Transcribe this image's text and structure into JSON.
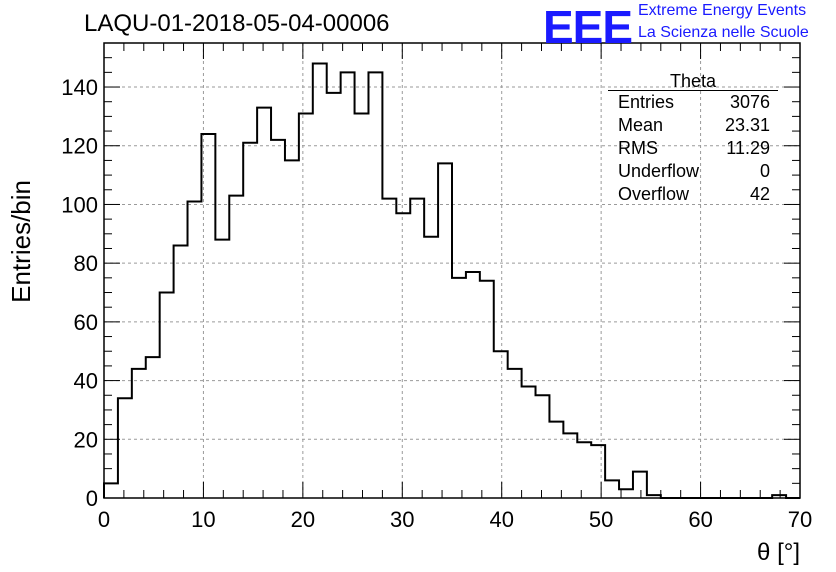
{
  "title": "LAQU-01-2018-05-04-00006",
  "logo": {
    "mark": "EEE",
    "line1": "Extreme Energy Events",
    "line2": "La Scienza nelle Scuole"
  },
  "stats": {
    "name": "Theta",
    "rows": [
      {
        "label": "Entries",
        "value": "3076"
      },
      {
        "label": "Mean",
        "value": "23.31"
      },
      {
        "label": "RMS",
        "value": "11.29"
      },
      {
        "label": "Underflow",
        "value": "0"
      },
      {
        "label": "Overflow",
        "value": "42"
      }
    ]
  },
  "colors": {
    "line": "#000000",
    "grid": "#9a9a9a",
    "logo": "#1a1aff"
  },
  "chart_data": {
    "type": "histogram",
    "xlabel": "θ [°]",
    "ylabel": "Entries/bin",
    "xlim": [
      0,
      70
    ],
    "ylim": [
      0,
      155
    ],
    "xticks": [
      0,
      10,
      20,
      30,
      40,
      50,
      60,
      70
    ],
    "yticks": [
      0,
      20,
      40,
      60,
      80,
      100,
      120,
      140
    ],
    "grid": true,
    "bin_width": 1.4,
    "values": [
      5,
      34,
      44,
      48,
      70,
      86,
      101,
      124,
      88,
      103,
      121,
      133,
      122,
      115,
      131,
      148,
      138,
      145,
      131,
      145,
      102,
      97,
      102,
      89,
      114,
      75,
      77,
      74,
      50,
      44,
      38,
      35,
      26,
      22,
      19,
      18,
      6,
      3,
      9,
      1,
      0,
      0,
      0,
      0,
      0,
      0,
      0,
      0,
      1,
      0
    ]
  }
}
